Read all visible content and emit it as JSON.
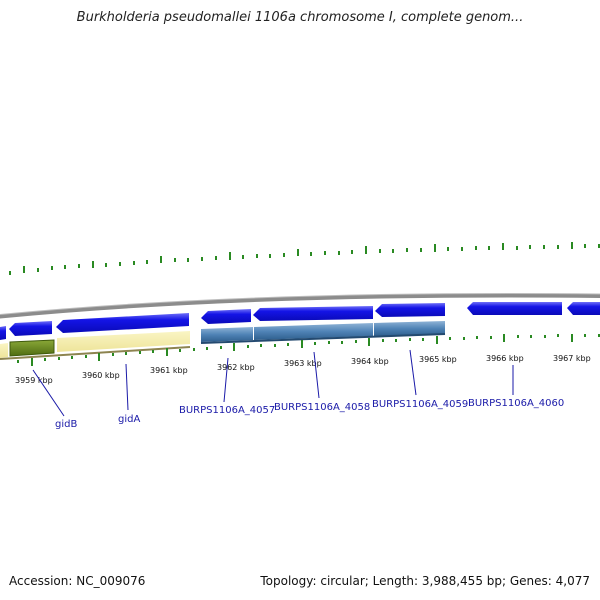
{
  "title": "Burkholderia pseudomallei 1106a chromosome I, complete genom...",
  "footer": {
    "accession": "Accession: NC_009076",
    "summary": "Topology: circular; Length: 3,988,455 bp; Genes: 4,077"
  },
  "scale_labels": [
    "3959 kbp",
    "3960 kbp",
    "3961 kbp",
    "3962 kbp",
    "3963 kbp",
    "3964 kbp",
    "3965 kbp",
    "3966 kbp",
    "3967 kbp"
  ],
  "genes": [
    "gidB",
    "gidA",
    "BURPS1106A_4057",
    "BURPS1106A_4058",
    "BURPS1106A_4059",
    "BURPS1106A_4060"
  ],
  "colors": {
    "cds": "#1010e0",
    "rna": "#4a7fb0",
    "gidB_track": "#5a7a18",
    "gidA_track": "#f5eeaa",
    "tick": "#2a8a22",
    "backbone": "#888888",
    "label": "#1a1aa8"
  }
}
